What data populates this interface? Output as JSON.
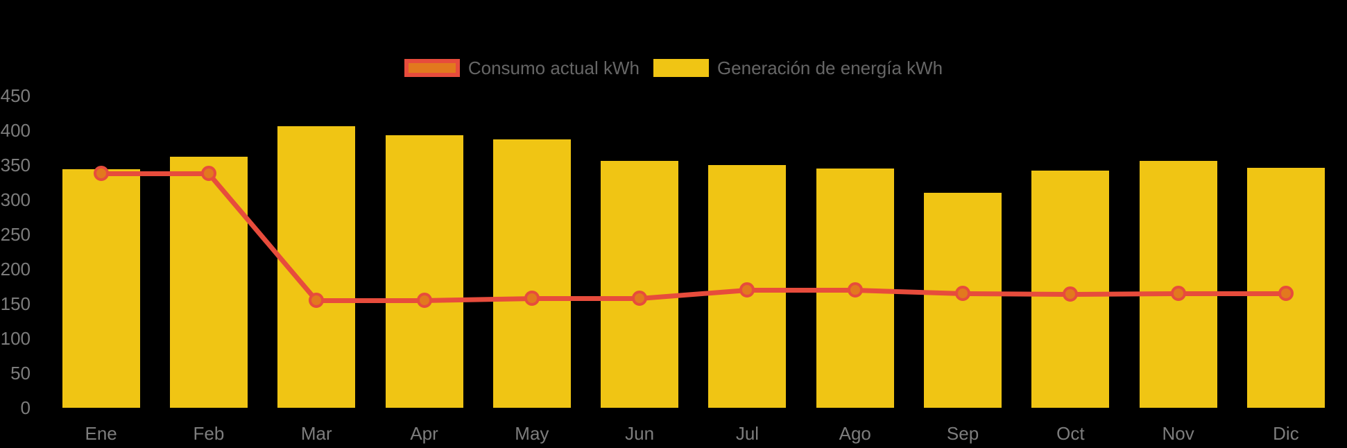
{
  "legend": {
    "items": [
      {
        "label": "Consumo actual kWh",
        "swatch_fill": "#E2791E",
        "swatch_border": "#E74C3C"
      },
      {
        "label": "Generación de energía kWh",
        "swatch_fill": "#F0C514",
        "swatch_border": "#F0C514"
      }
    ]
  },
  "colors": {
    "background": "#000000",
    "bar_yellow": "#F0C514",
    "line_red": "#E74C3C",
    "marker_orange": "#E2791E",
    "axis_text": "#7D7D7D",
    "legend_text": "#666666"
  },
  "chart_data": {
    "type": "bar",
    "subtype": "bar-and-line-combo",
    "categories": [
      "Ene",
      "Feb",
      "Mar",
      "Apr",
      "May",
      "Jun",
      "Jul",
      "Ago",
      "Sep",
      "Oct",
      "Nov",
      "Dic"
    ],
    "series": [
      {
        "name": "Consumo actual kWh",
        "type": "line",
        "color": "#E74C3C",
        "point_fill": "#E2791E",
        "values": [
          338,
          338,
          155,
          155,
          158,
          158,
          170,
          170,
          165,
          164,
          165,
          165
        ]
      },
      {
        "name": "Generación de energía kWh",
        "type": "bar",
        "color": "#F0C514",
        "values": [
          344,
          362,
          406,
          393,
          387,
          356,
          350,
          345,
          310,
          342,
          356,
          346
        ]
      }
    ],
    "title": "",
    "xlabel": "",
    "ylabel": "",
    "ylim": [
      0,
      450
    ],
    "yticks": [
      0,
      50,
      100,
      150,
      200,
      250,
      300,
      350,
      400,
      450
    ],
    "grid": false,
    "legend_position": "top"
  }
}
